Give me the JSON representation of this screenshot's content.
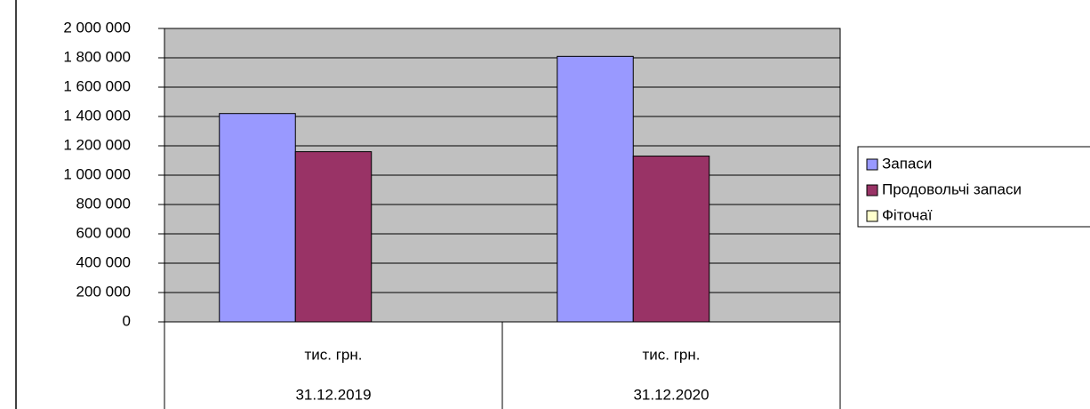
{
  "chart_data": {
    "type": "bar",
    "categories": [
      "тис. грн.",
      "тис. грн."
    ],
    "category_groups": [
      "31.12.2019",
      "31.12.2020"
    ],
    "series": [
      {
        "name": "Запаси",
        "color": "#9999ff",
        "values": [
          1420000,
          1810000
        ]
      },
      {
        "name": "Продовольчі запаси",
        "color": "#993366",
        "values": [
          1160000,
          1130000
        ]
      },
      {
        "name": "Фіточаї",
        "color": "#ffffcc",
        "values": [
          0,
          0
        ]
      }
    ],
    "ylim": [
      0,
      2000000
    ],
    "yticks": [
      {
        "value": 0,
        "label": "0"
      },
      {
        "value": 200000,
        "label": "200 000"
      },
      {
        "value": 400000,
        "label": "400 000"
      },
      {
        "value": 600000,
        "label": "600 000"
      },
      {
        "value": 800000,
        "label": "800 000"
      },
      {
        "value": 1000000,
        "label": "1 000 000"
      },
      {
        "value": 1200000,
        "label": "1 200 000"
      },
      {
        "value": 1400000,
        "label": "1 400 000"
      },
      {
        "value": 1600000,
        "label": "1 600 000"
      },
      {
        "value": 1800000,
        "label": "1 800 000"
      },
      {
        "value": 2000000,
        "label": "2 000 000"
      }
    ],
    "grid": true,
    "plot_background": "#c0c0c0",
    "legend": "right"
  }
}
